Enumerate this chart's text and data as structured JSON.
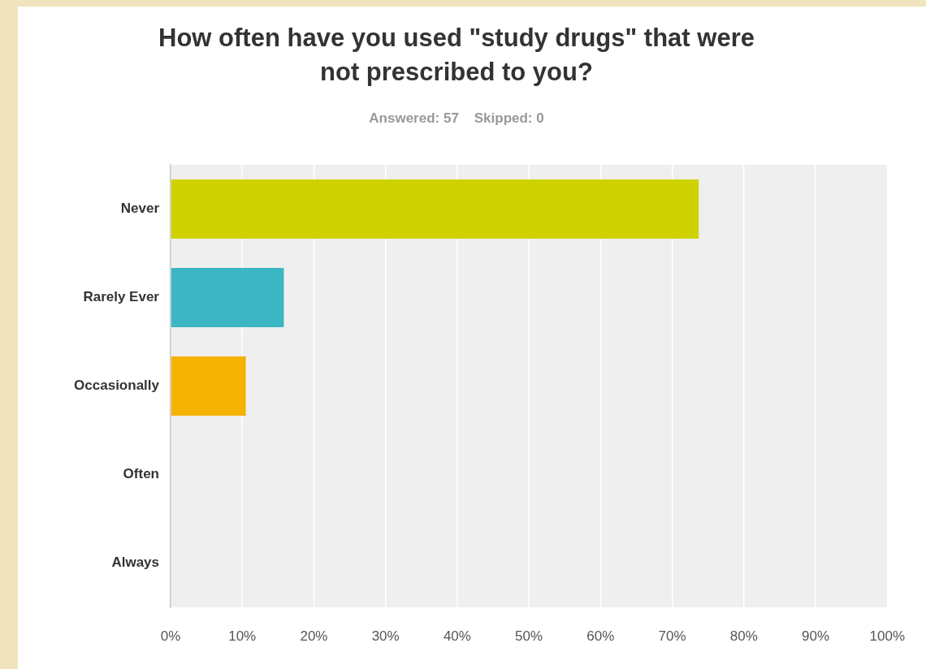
{
  "chart_data": {
    "type": "bar",
    "orientation": "horizontal",
    "title": "How often have you used \"study drugs\" that were not prescribed to you?",
    "subtitle": "Answered: 57    Skipped: 0",
    "categories": [
      "Never",
      "Rarely Ever",
      "Occasionally",
      "Often",
      "Always"
    ],
    "values": [
      73.7,
      15.8,
      10.5,
      0,
      0
    ],
    "colors": [
      "#d0d200",
      "#3bb6c2",
      "#f5b200",
      "#e0603a",
      "#8a6fb5"
    ],
    "xlim": [
      0,
      100
    ],
    "xticks": [
      {
        "value": 0,
        "label": "0%"
      },
      {
        "value": 10,
        "label": "10%"
      },
      {
        "value": 20,
        "label": "20%"
      },
      {
        "value": 30,
        "label": "30%"
      },
      {
        "value": 40,
        "label": "40%"
      },
      {
        "value": 50,
        "label": "50%"
      },
      {
        "value": 60,
        "label": "60%"
      },
      {
        "value": 70,
        "label": "70%"
      },
      {
        "value": 80,
        "label": "80%"
      },
      {
        "value": 90,
        "label": "90%"
      },
      {
        "value": 100,
        "label": "100%"
      }
    ],
    "grid": "x",
    "legend": false
  }
}
